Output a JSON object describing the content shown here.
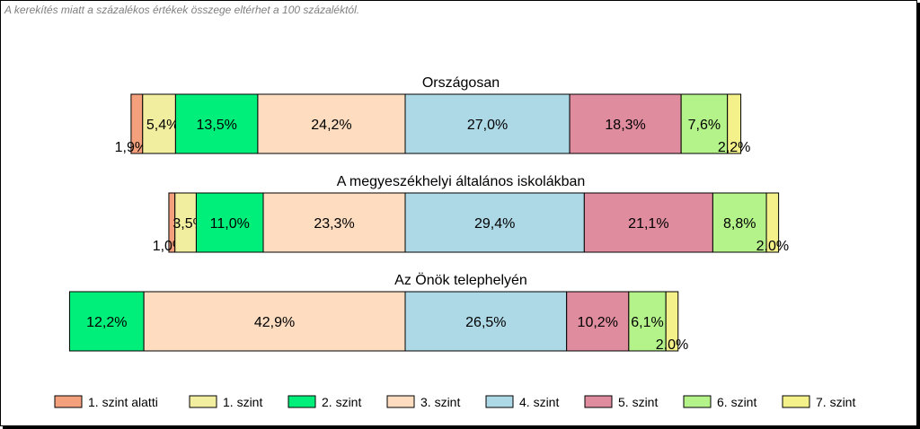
{
  "note": "A kerekítés miatt a  százalékos értékek összege eltérhet a 100 százaléktól.",
  "chart_data": {
    "type": "bar",
    "orientation": "horizontal-stacked",
    "categories": [
      "1. szint alatti",
      "1. szint",
      "2. szint",
      "3. szint",
      "4. szint",
      "5. szint",
      "6. szint",
      "7. szint"
    ],
    "colors": [
      "#F4A07C",
      "#F2EEA0",
      "#00EE7A",
      "#FDDCC0",
      "#ADD8E6",
      "#DE8C9E",
      "#B4F28A",
      "#F4F08A"
    ],
    "center_category": "4. szint",
    "groups": [
      {
        "title": "Országosan",
        "values": [
          1.9,
          5.4,
          13.5,
          24.2,
          27.0,
          18.3,
          7.6,
          2.2
        ],
        "labels": [
          "1,9%",
          "5,4%",
          "13,5%",
          "24,2%",
          "27,0%",
          "18,3%",
          "7,6%",
          "2,2%"
        ]
      },
      {
        "title": "A megyeszékhelyi általános iskolákban",
        "values": [
          1.0,
          3.5,
          11.0,
          23.3,
          29.4,
          21.1,
          8.8,
          2.0
        ],
        "labels": [
          "1,0%",
          "3,5%",
          "11,0%",
          "23,3%",
          "29,4%",
          "21,1%",
          "8,8%",
          "2,0%"
        ]
      },
      {
        "title": "Az Önök telephelyén",
        "values": [
          0,
          0,
          12.2,
          42.9,
          26.5,
          10.2,
          6.1,
          2.0
        ],
        "labels": [
          "",
          "",
          "12,2%",
          "42,9%",
          "26,5%",
          "10,2%",
          "6,1%",
          "2,0%"
        ]
      }
    ],
    "legend_position": "bottom"
  }
}
